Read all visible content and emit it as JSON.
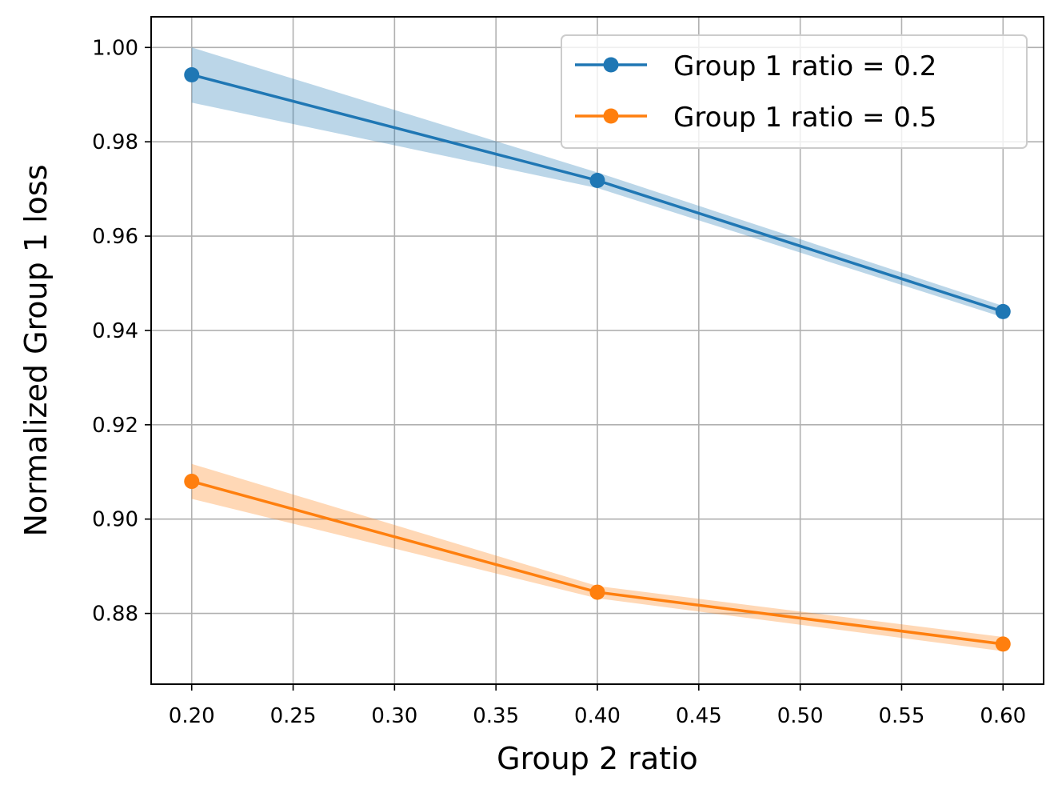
{
  "chart_data": {
    "type": "line",
    "title": "",
    "xlabel": "Group 2 ratio",
    "ylabel": "Normalized Group 1 loss",
    "xlim": [
      0.18,
      0.62
    ],
    "ylim": [
      0.865,
      1.0065
    ],
    "xticks": [
      0.2,
      0.25,
      0.3,
      0.35,
      0.4,
      0.45,
      0.5,
      0.55,
      0.6
    ],
    "xtick_labels": [
      "0.20",
      "0.25",
      "0.30",
      "0.35",
      "0.40",
      "0.45",
      "0.50",
      "0.55",
      "0.60"
    ],
    "yticks": [
      0.88,
      0.9,
      0.92,
      0.94,
      0.96,
      0.98,
      1.0
    ],
    "ytick_labels": [
      "0.88",
      "0.90",
      "0.92",
      "0.94",
      "0.96",
      "0.98",
      "1.00"
    ],
    "grid": true,
    "legend_position": "top-right",
    "x": [
      0.2,
      0.4,
      0.6
    ],
    "series": [
      {
        "name": "Group 1 ratio = 0.2",
        "color": "#1f77b4",
        "band_color": "#1f77b4",
        "values": [
          0.9942,
          0.9718,
          0.944
        ],
        "lower": [
          0.9883,
          0.9702,
          0.9428
        ],
        "upper": [
          1.0,
          0.9735,
          0.9452
        ]
      },
      {
        "name": "Group 1 ratio = 0.5",
        "color": "#ff7f0e",
        "band_color": "#ff7f0e",
        "values": [
          0.908,
          0.8845,
          0.8735
        ],
        "lower": [
          0.9043,
          0.8832,
          0.872
        ],
        "upper": [
          0.9117,
          0.8858,
          0.875
        ]
      }
    ]
  }
}
